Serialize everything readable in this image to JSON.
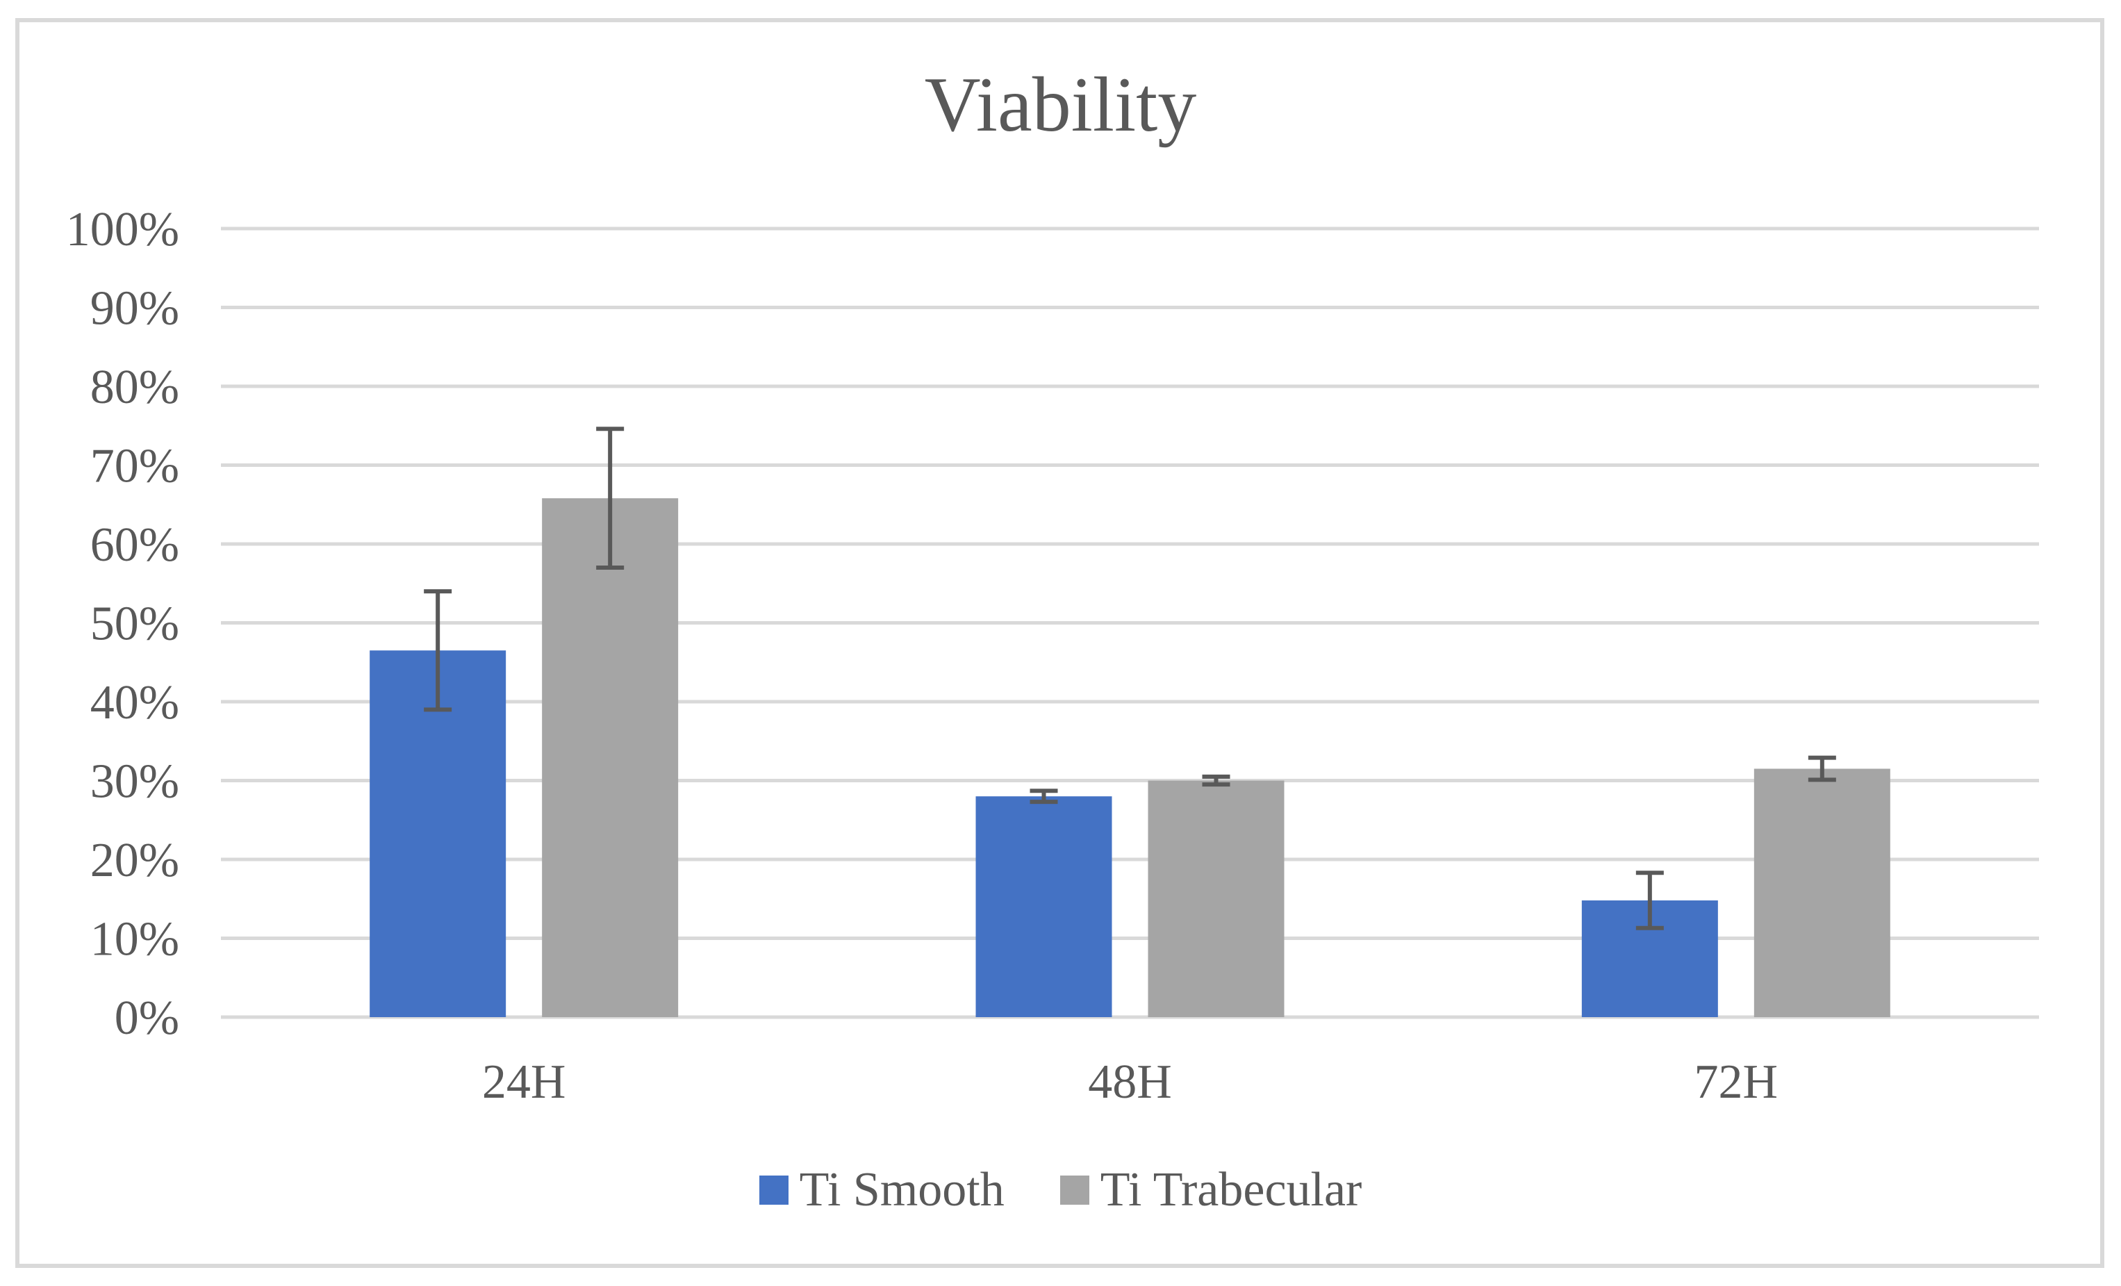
{
  "chart_data": {
    "type": "bar",
    "title": "Viability",
    "categories": [
      "24H",
      "48H",
      "72H"
    ],
    "series": [
      {
        "name": "Ti Smooth",
        "color": "#4472c4",
        "values": [
          0.465,
          0.28,
          0.148
        ],
        "errors": [
          0.075,
          0.007,
          0.035
        ]
      },
      {
        "name": "Ti Trabecular",
        "color": "#a5a5a5",
        "values": [
          0.658,
          0.3,
          0.315
        ],
        "errors": [
          0.088,
          0.005,
          0.014
        ]
      }
    ],
    "yticks": [
      "0%",
      "10%",
      "20%",
      "30%",
      "40%",
      "50%",
      "60%",
      "70%",
      "80%",
      "90%",
      "100%"
    ],
    "ylim": [
      0,
      1
    ],
    "xlabel": "",
    "ylabel": "",
    "grid": true,
    "legend_position": "bottom"
  }
}
